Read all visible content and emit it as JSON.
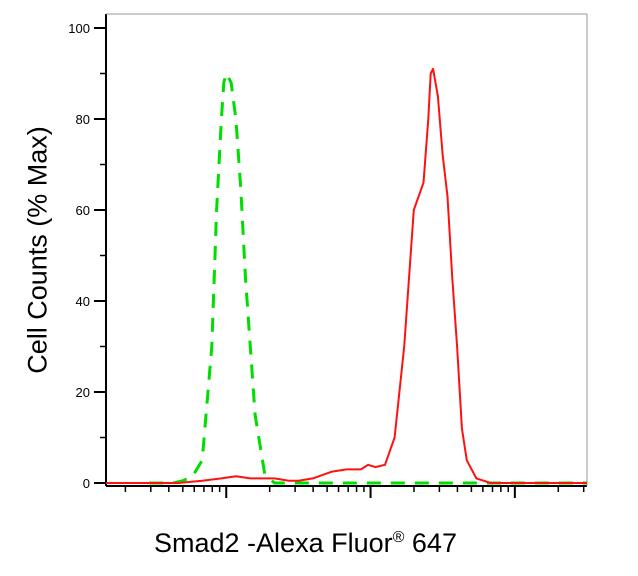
{
  "chart_data": {
    "type": "line",
    "title": "",
    "ylabel": "Cell Counts (% Max)",
    "xlabel": {
      "main": "Smad2 -Alexa Fluor",
      "sup": "®",
      "tail": " 647"
    },
    "ylim": [
      0,
      100
    ],
    "xlim": [
      0,
      1
    ],
    "x_scale": "log",
    "y_ticks": [
      0,
      20,
      40,
      60,
      80,
      100
    ],
    "x_major_ticks": [
      0.25,
      0.55,
      0.85
    ],
    "grid": false,
    "series": [
      {
        "color": "#00dd00",
        "dash": true,
        "x": [
          0.09,
          0.1,
          0.12,
          0.14,
          0.16,
          0.18,
          0.2,
          0.22,
          0.23,
          0.24,
          0.245,
          0.25,
          0.255,
          0.26,
          0.27,
          0.28,
          0.29,
          0.3,
          0.31,
          0.33,
          0.35,
          0.37,
          0.4,
          0.5,
          0.6,
          0.7,
          0.8,
          0.9,
          1.0
        ],
        "y": [
          0,
          0,
          0,
          0,
          0.5,
          1.5,
          5,
          30,
          60,
          80,
          88,
          90,
          89,
          88,
          80,
          65,
          45,
          30,
          15,
          2,
          0,
          0,
          0,
          0,
          0,
          0,
          0,
          0,
          0
        ]
      },
      {
        "color": "#ff1111",
        "dash": false,
        "x": [
          0.0,
          0.15,
          0.2,
          0.24,
          0.27,
          0.3,
          0.35,
          0.38,
          0.4,
          0.43,
          0.47,
          0.5,
          0.53,
          0.545,
          0.56,
          0.58,
          0.6,
          0.62,
          0.64,
          0.66,
          0.67,
          0.675,
          0.68,
          0.69,
          0.7,
          0.71,
          0.72,
          0.73,
          0.74,
          0.75,
          0.77,
          0.8,
          0.85,
          1.0
        ],
        "y": [
          0,
          0,
          0.5,
          1,
          1.5,
          1,
          1,
          0.5,
          0.5,
          1,
          2.5,
          3,
          3,
          4,
          3.5,
          4,
          10,
          30,
          60,
          66,
          80,
          90,
          91,
          85,
          72,
          63,
          45,
          30,
          12,
          5,
          1,
          0,
          0,
          0
        ]
      }
    ]
  }
}
